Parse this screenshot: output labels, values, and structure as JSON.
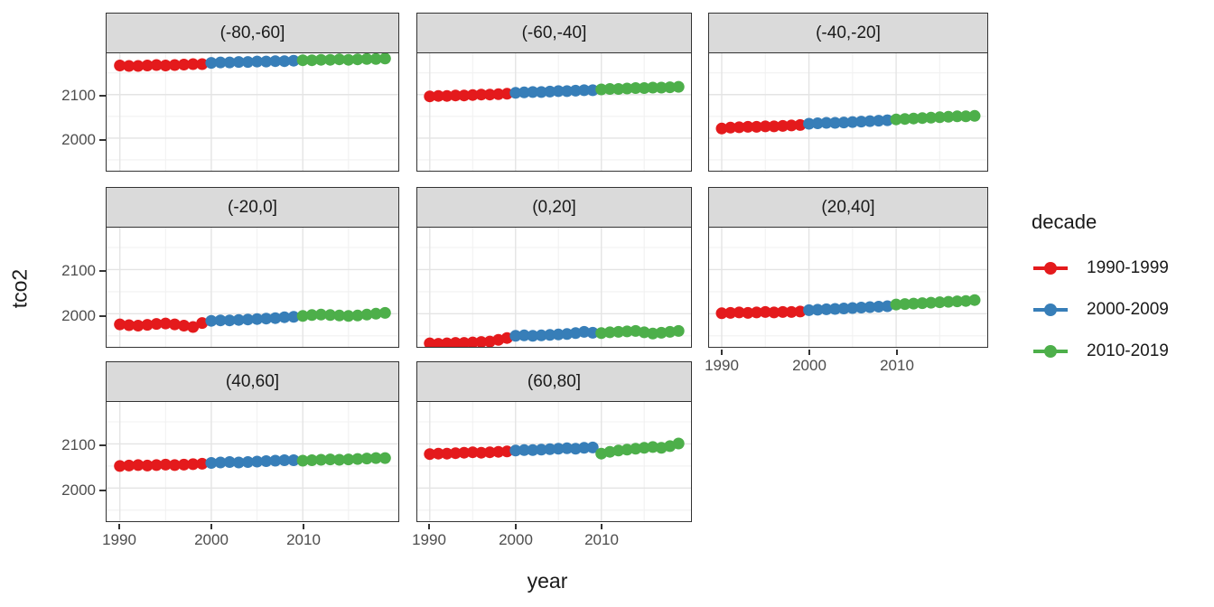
{
  "figure": {
    "x_axis_title": "year",
    "y_axis_title": "tco2",
    "x_tick_labels": [
      "1990",
      "2000",
      "2010"
    ],
    "y_tick_labels": [
      "2100",
      "2000"
    ]
  },
  "legend": {
    "title": "decade",
    "entries": [
      {
        "label": "1990-1999",
        "color": "#E41A1C"
      },
      {
        "label": "2000-2009",
        "color": "#377EB8"
      },
      {
        "label": "2010-2019",
        "color": "#4DAF4A"
      }
    ]
  },
  "style": {
    "strip_bg": "#DADADA",
    "panel_border": "#333333",
    "grid_major": "#E4E4E4",
    "grid_minor": "#F1F1F1",
    "tick_text": "#4D4D4D",
    "point_radius": 6.5,
    "line_width": 1.6
  },
  "chart_data": {
    "type": "scatter",
    "title": "",
    "xlabel": "year",
    "ylabel": "tco2",
    "legend_title": "decade",
    "legend_position": "right",
    "grid": true,
    "x": [
      1990,
      1991,
      1992,
      1993,
      1994,
      1995,
      1996,
      1997,
      1998,
      1999,
      2000,
      2001,
      2002,
      2003,
      2004,
      2005,
      2006,
      2007,
      2008,
      2009,
      2010,
      2011,
      2012,
      2013,
      2014,
      2015,
      2016,
      2017,
      2018,
      2019
    ],
    "x_domain": [
      1988.55,
      2020.45
    ],
    "y_domain": [
      1925,
      2195
    ],
    "x_major_gridlines": [
      1990,
      2000,
      2010
    ],
    "x_minor_gridlines": [
      1995,
      2005,
      2015
    ],
    "y_major_gridlines": [
      2000,
      2100
    ],
    "y_minor_gridlines": [
      1950,
      2050,
      2150
    ],
    "series_names": [
      "1990-1999",
      "2000-2009",
      "2010-2019"
    ],
    "series_colors": [
      "#E41A1C",
      "#377EB8",
      "#4DAF4A"
    ],
    "facets": [
      {
        "label": "(-80,-60]",
        "series": [
          [
            2167,
            2166,
            2166,
            2167,
            2168,
            2167,
            2168,
            2169,
            2170,
            2170
          ],
          [
            2173,
            2174,
            2174,
            2175,
            2175,
            2176,
            2176,
            2177,
            2177,
            2178
          ],
          [
            2179,
            2179,
            2180,
            2180,
            2181,
            2180,
            2181,
            2182,
            2182,
            2183
          ]
        ]
      },
      {
        "label": "(-60,-40]",
        "series": [
          [
            2096,
            2097,
            2097,
            2098,
            2098,
            2099,
            2100,
            2100,
            2101,
            2102
          ],
          [
            2104,
            2105,
            2106,
            2106,
            2107,
            2108,
            2108,
            2109,
            2110,
            2110
          ],
          [
            2112,
            2113,
            2113,
            2114,
            2115,
            2115,
            2116,
            2116,
            2117,
            2118
          ]
        ]
      },
      {
        "label": "(-40,-20]",
        "series": [
          [
            2022,
            2024,
            2025,
            2026,
            2026,
            2027,
            2027,
            2028,
            2029,
            2030
          ],
          [
            2033,
            2034,
            2035,
            2035,
            2036,
            2037,
            2038,
            2039,
            2040,
            2041
          ],
          [
            2043,
            2044,
            2045,
            2046,
            2047,
            2048,
            2049,
            2050,
            2050,
            2051
          ]
        ]
      },
      {
        "label": "(-20,0]",
        "series": [
          [
            1976,
            1974,
            1973,
            1975,
            1977,
            1978,
            1976,
            1973,
            1970,
            1979
          ],
          [
            1984,
            1985,
            1985,
            1986,
            1987,
            1988,
            1989,
            1990,
            1992,
            1993
          ],
          [
            1995,
            1997,
            1998,
            1997,
            1996,
            1995,
            1996,
            1998,
            2000,
            2002
          ]
        ]
      },
      {
        "label": "(0,20]",
        "series": [
          [
            1933,
            1932,
            1933,
            1934,
            1934,
            1935,
            1936,
            1937,
            1941,
            1945
          ],
          [
            1950,
            1951,
            1950,
            1951,
            1952,
            1953,
            1954,
            1956,
            1959,
            1957
          ],
          [
            1956,
            1958,
            1959,
            1960,
            1961,
            1958,
            1955,
            1957,
            1959,
            1961
          ]
        ]
      },
      {
        "label": "(20,40]",
        "series": [
          [
            2001,
            2002,
            2003,
            2002,
            2003,
            2004,
            2003,
            2004,
            2004,
            2005
          ],
          [
            2008,
            2009,
            2010,
            2011,
            2012,
            2013,
            2014,
            2015,
            2016,
            2017
          ],
          [
            2021,
            2022,
            2023,
            2024,
            2025,
            2026,
            2027,
            2028,
            2029,
            2031
          ]
        ]
      },
      {
        "label": "(40,60]",
        "series": [
          [
            2050,
            2051,
            2052,
            2051,
            2052,
            2053,
            2052,
            2053,
            2054,
            2055
          ],
          [
            2057,
            2058,
            2059,
            2058,
            2059,
            2060,
            2061,
            2062,
            2063,
            2063
          ],
          [
            2062,
            2063,
            2064,
            2065,
            2064,
            2065,
            2066,
            2067,
            2068,
            2068
          ]
        ]
      },
      {
        "label": "(60,80]",
        "series": [
          [
            2077,
            2078,
            2078,
            2079,
            2080,
            2081,
            2080,
            2081,
            2082,
            2083
          ],
          [
            2085,
            2086,
            2086,
            2087,
            2088,
            2089,
            2090,
            2089,
            2091,
            2092
          ],
          [
            2078,
            2082,
            2085,
            2087,
            2089,
            2091,
            2093,
            2091,
            2095,
            2101
          ]
        ]
      }
    ]
  }
}
